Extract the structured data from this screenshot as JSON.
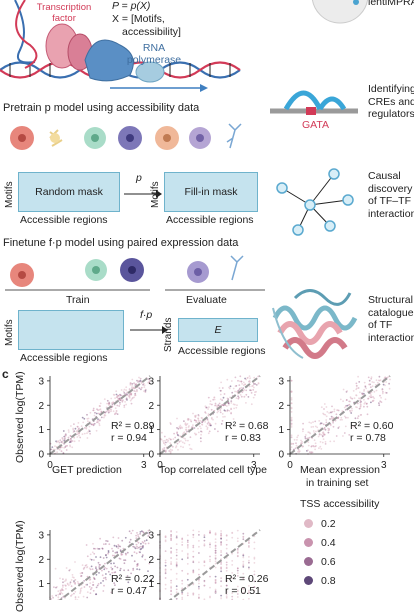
{
  "top": {
    "tf_label": "Transcription factor",
    "formula_p": "P = p(X)",
    "formula_x": "X = [Motifs,",
    "formula_x2": "accessibility]",
    "rna_label": "RNA polymerase",
    "right_top_label": "lentiMPRA"
  },
  "pretrain": {
    "title": "Pretrain p model using accessibility data",
    "left_box": "Random mask",
    "right_box": "Fill-in mask",
    "arrow_label": "p",
    "y_label": "Motifs",
    "x_label": "Accessible regions"
  },
  "finetune": {
    "title": "Finetune f·p model using paired expression data",
    "train": "Train",
    "evaluate": "Evaluate",
    "arrow_label": "f·p",
    "left_y": "Motifs",
    "right_y": "Strands",
    "right_box": "E",
    "x_label": "Accessible regions"
  },
  "right_apps": {
    "cre": [
      "Identifying",
      "CREs and",
      "regulators"
    ],
    "gata": "GATA",
    "causal": [
      "Causal",
      "discovery",
      "of TF–TF",
      "interactions"
    ],
    "struct": [
      "Structural",
      "catalogue",
      "of TF",
      "interactions"
    ]
  },
  "panel_c": {
    "letter": "c",
    "y_label": "Observed log(TPM)",
    "plots": [
      {
        "xlabel": "GET prediction",
        "r2": "R² = 0.89",
        "r": "r = 0.94"
      },
      {
        "xlabel": "Top correlated cell type",
        "r2": "R² = 0.68",
        "r": "r = 0.83"
      },
      {
        "xlabel": "Mean expression",
        "xlabel2": "in training set",
        "r2": "R² = 0.60",
        "r": "r = 0.78"
      },
      {
        "xlabel": "",
        "r2": "R² = 0.22",
        "r": "r = 0.47"
      },
      {
        "xlabel": "",
        "r2": "R² = 0.26",
        "r": "r = 0.51"
      }
    ],
    "ticks": {
      "y": [
        "0",
        "1",
        "2",
        "3"
      ],
      "x0": "0",
      "x3": "3"
    },
    "legend": {
      "title": "TSS accessibility",
      "items": [
        {
          "label": "0.2",
          "color": "#e0b9c6"
        },
        {
          "label": "0.4",
          "color": "#c993ae"
        },
        {
          "label": "0.6",
          "color": "#9a6b92"
        },
        {
          "label": "0.8",
          "color": "#5e4878"
        }
      ]
    }
  }
}
